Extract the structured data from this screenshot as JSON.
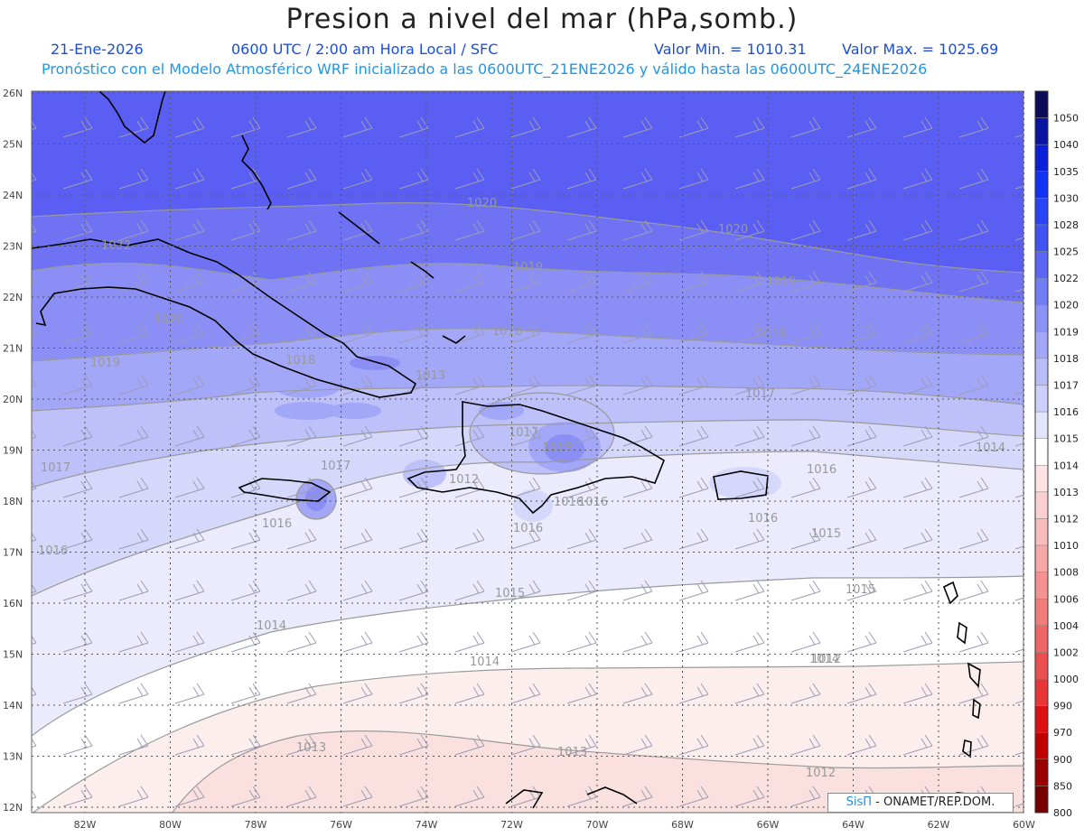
{
  "header": {
    "title": "Presion a nivel del mar (hPa,somb.)",
    "date": "21-Ene-2026",
    "time": "0600 UTC / 2:00 am Hora Local / SFC",
    "min_label": "Valor Min. = 1010.31",
    "max_label": "Valor Max. = 1025.69",
    "forecast_note": "Pronóstico con el Modelo Atmosférico WRF inicializado a las 0600UTC_21ENE2026 y válido hasta las  0600UTC_24ENE2026"
  },
  "map": {
    "lon_ticks": [
      "82W",
      "80W",
      "78W",
      "76W",
      "74W",
      "72W",
      "70W",
      "68W",
      "66W",
      "64W",
      "62W",
      "60W"
    ],
    "lat_ticks": [
      "26N",
      "25N",
      "24N",
      "23N",
      "22N",
      "21N",
      "20N",
      "19N",
      "18N",
      "17N",
      "16N",
      "15N",
      "14N",
      "13N",
      "12N"
    ],
    "contour_labels": [
      "1022",
      "1020",
      "1020",
      "1020",
      "1019",
      "1019",
      "1019",
      "1018",
      "1018",
      "1018",
      "1017",
      "1017",
      "1017",
      "1017",
      "1016",
      "1016",
      "1016",
      "1016",
      "1016",
      "1015",
      "1015",
      "1015",
      "1014",
      "1014",
      "1014",
      "1013",
      "1013",
      "1012",
      "1012",
      "1012",
      "1013",
      "1016",
      "1014",
      "1015",
      "1016"
    ],
    "colors": {
      "high_1022": "#5a5ef2",
      "high_1020": "#6f73f3",
      "p1019": "#8b8ff5",
      "p1018": "#a3a7f7",
      "p1017": "#bdc0f9",
      "p1016": "#d6d8fb",
      "p1015": "#ebebfd",
      "p1014": "#ffffff",
      "p1013": "#fdeeee",
      "p1012": "#fbe0e0",
      "coast": "#000000",
      "contour": "#9a9a9a"
    }
  },
  "colorbar": {
    "labels": [
      "1050",
      "1040",
      "1035",
      "1030",
      "1028",
      "1025",
      "1022",
      "1020",
      "1019",
      "1018",
      "1017",
      "1016",
      "1015",
      "1014",
      "1013",
      "1012",
      "1010",
      "1008",
      "1006",
      "1004",
      "1002",
      "1000",
      "990",
      "970",
      "900",
      "850",
      "800"
    ],
    "colors": [
      "#0b0b58",
      "#0a14a2",
      "#0a1fd8",
      "#1232f4",
      "#2945f5",
      "#4054f4",
      "#5a66f3",
      "#727cf4",
      "#8a92f6",
      "#a2a8f7",
      "#b8bdf9",
      "#cdd0fa",
      "#e3e5fc",
      "#ffffff",
      "#fde3e3",
      "#fbd0d0",
      "#f9bcbc",
      "#f7a8a8",
      "#f49292",
      "#f17c7c",
      "#ee6565",
      "#eb4e4e",
      "#e83636",
      "#dc1010",
      "#c00000",
      "#9a0000",
      "#760000"
    ]
  },
  "credit": {
    "brand": "SisΠ",
    "text": " - ONAMET/REP.DOM."
  }
}
